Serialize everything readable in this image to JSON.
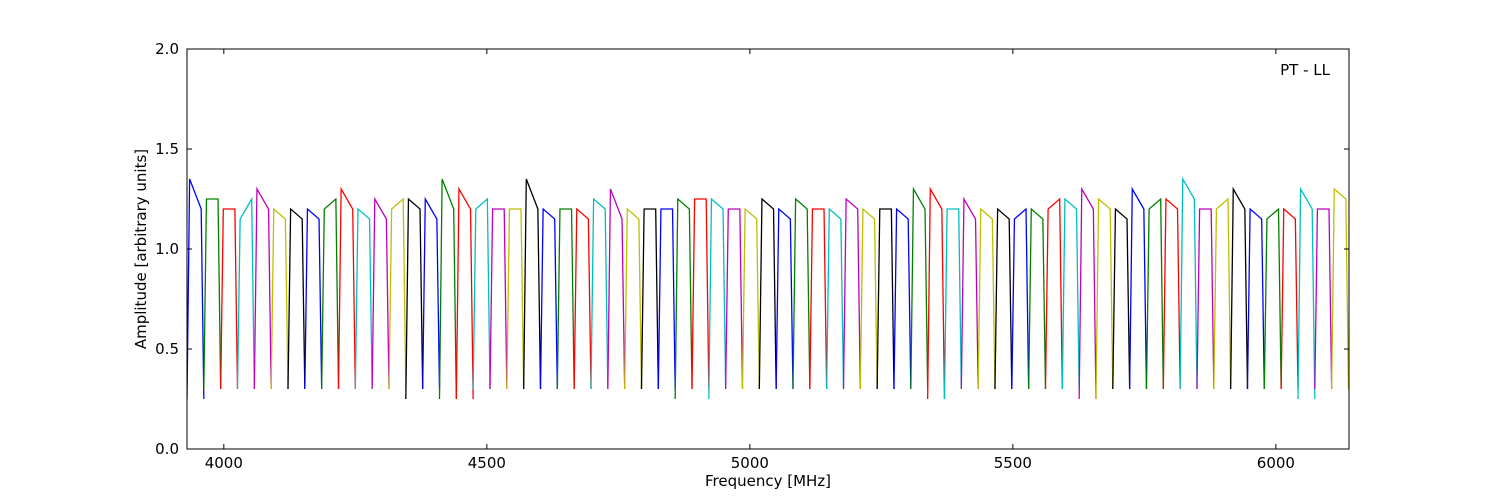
{
  "chart_data": {
    "type": "line",
    "xlabel": "Frequency [MHz]",
    "ylabel": "Amplitude [arbitrary units]",
    "annotation": "PT - LL",
    "xlim": [
      3930,
      6139
    ],
    "ylim": [
      0,
      2
    ],
    "xticks": [
      4000,
      4500,
      5000,
      5500,
      6000
    ],
    "yticks": [
      {
        "value": 0,
        "label": "0.0"
      },
      0.5,
      {
        "value": 1,
        "label": "1.0"
      },
      1.5,
      {
        "value": 2,
        "label": "2.0"
      }
    ],
    "series": [
      {
        "color": "#0000ff",
        "x": [
          3930,
          3935,
          3957,
          3962
        ],
        "values": [
          0.25,
          1.35,
          1.2,
          0.25
        ]
      },
      {
        "color": "#008000",
        "x": [
          3962,
          3967,
          3989,
          3994
        ],
        "values": [
          0.3,
          1.25,
          1.25,
          0.3
        ]
      },
      {
        "color": "#ff0000",
        "x": [
          3994,
          3999,
          4021,
          4026
        ],
        "values": [
          0.3,
          1.2,
          1.2,
          0.3
        ]
      },
      {
        "color": "#00bfbf",
        "x": [
          4026,
          4031,
          4053,
          4058
        ],
        "values": [
          0.3,
          1.15,
          1.25,
          0.3
        ]
      },
      {
        "color": "#bf00bf",
        "x": [
          4058,
          4063,
          4085,
          4090
        ],
        "values": [
          0.3,
          1.3,
          1.2,
          0.3
        ]
      },
      {
        "color": "#bfbf00",
        "x": [
          4090,
          4095,
          4117,
          4122
        ],
        "values": [
          0.3,
          1.2,
          1.15,
          0.3
        ]
      },
      {
        "color": "#000000",
        "x": [
          4122,
          4127,
          4149,
          4154
        ],
        "values": [
          0.3,
          1.2,
          1.15,
          0.3
        ]
      },
      {
        "color": "#0000ff",
        "x": [
          4154,
          4159,
          4181,
          4186
        ],
        "values": [
          0.3,
          1.2,
          1.15,
          0.3
        ]
      },
      {
        "color": "#008000",
        "x": [
          4186,
          4191,
          4213,
          4218
        ],
        "values": [
          0.3,
          1.2,
          1.25,
          0.3
        ]
      },
      {
        "color": "#ff0000",
        "x": [
          4218,
          4223,
          4245,
          4250
        ],
        "values": [
          0.3,
          1.3,
          1.2,
          0.3
        ]
      },
      {
        "color": "#00bfbf",
        "x": [
          4250,
          4255,
          4277,
          4282
        ],
        "values": [
          0.3,
          1.2,
          1.15,
          0.3
        ]
      },
      {
        "color": "#bf00bf",
        "x": [
          4282,
          4287,
          4309,
          4314
        ],
        "values": [
          0.3,
          1.25,
          1.15,
          0.3
        ]
      },
      {
        "color": "#bfbf00",
        "x": [
          4314,
          4319,
          4341,
          4346
        ],
        "values": [
          0.3,
          1.2,
          1.25,
          0.3
        ]
      },
      {
        "color": "#000000",
        "x": [
          4346,
          4351,
          4373,
          4378
        ],
        "values": [
          0.25,
          1.25,
          1.2,
          0.3
        ]
      },
      {
        "color": "#0000ff",
        "x": [
          4378,
          4383,
          4405,
          4410
        ],
        "values": [
          0.3,
          1.25,
          1.15,
          0.3
        ]
      },
      {
        "color": "#008000",
        "x": [
          4410,
          4415,
          4437,
          4442
        ],
        "values": [
          0.25,
          1.35,
          1.2,
          0.25
        ]
      },
      {
        "color": "#ff0000",
        "x": [
          4442,
          4447,
          4469,
          4474
        ],
        "values": [
          0.25,
          1.3,
          1.2,
          0.25
        ]
      },
      {
        "color": "#00bfbf",
        "x": [
          4474,
          4479,
          4501,
          4506
        ],
        "values": [
          0.3,
          1.2,
          1.25,
          0.3
        ]
      },
      {
        "color": "#bf00bf",
        "x": [
          4506,
          4511,
          4533,
          4538
        ],
        "values": [
          0.3,
          1.2,
          1.2,
          0.3
        ]
      },
      {
        "color": "#bfbf00",
        "x": [
          4538,
          4543,
          4565,
          4570
        ],
        "values": [
          0.3,
          1.2,
          1.2,
          0.3
        ]
      },
      {
        "color": "#000000",
        "x": [
          4570,
          4575,
          4597,
          4602
        ],
        "values": [
          0.3,
          1.35,
          1.2,
          0.3
        ]
      },
      {
        "color": "#0000ff",
        "x": [
          4602,
          4607,
          4629,
          4634
        ],
        "values": [
          0.3,
          1.2,
          1.15,
          0.3
        ]
      },
      {
        "color": "#008000",
        "x": [
          4634,
          4639,
          4661,
          4666
        ],
        "values": [
          0.3,
          1.2,
          1.2,
          0.3
        ]
      },
      {
        "color": "#ff0000",
        "x": [
          4666,
          4671,
          4693,
          4698
        ],
        "values": [
          0.3,
          1.2,
          1.15,
          0.3
        ]
      },
      {
        "color": "#00bfbf",
        "x": [
          4698,
          4703,
          4725,
          4730
        ],
        "values": [
          0.3,
          1.25,
          1.2,
          0.3
        ]
      },
      {
        "color": "#bf00bf",
        "x": [
          4730,
          4735,
          4757,
          4762
        ],
        "values": [
          0.3,
          1.3,
          1.15,
          0.3
        ]
      },
      {
        "color": "#bfbf00",
        "x": [
          4762,
          4767,
          4789,
          4794
        ],
        "values": [
          0.3,
          1.2,
          1.15,
          0.3
        ]
      },
      {
        "color": "#000000",
        "x": [
          4794,
          4799,
          4821,
          4826
        ],
        "values": [
          0.3,
          1.2,
          1.2,
          0.3
        ]
      },
      {
        "color": "#0000ff",
        "x": [
          4826,
          4831,
          4853,
          4858
        ],
        "values": [
          0.3,
          1.2,
          1.2,
          0.3
        ]
      },
      {
        "color": "#008000",
        "x": [
          4858,
          4863,
          4885,
          4890
        ],
        "values": [
          0.25,
          1.25,
          1.2,
          0.3
        ]
      },
      {
        "color": "#ff0000",
        "x": [
          4890,
          4895,
          4917,
          4922
        ],
        "values": [
          0.3,
          1.25,
          1.25,
          0.3
        ]
      },
      {
        "color": "#00bfbf",
        "x": [
          4922,
          4927,
          4949,
          4954
        ],
        "values": [
          0.25,
          1.25,
          1.2,
          0.3
        ]
      },
      {
        "color": "#bf00bf",
        "x": [
          4954,
          4959,
          4981,
          4986
        ],
        "values": [
          0.3,
          1.2,
          1.2,
          0.3
        ]
      },
      {
        "color": "#bfbf00",
        "x": [
          4986,
          4991,
          5013,
          5018
        ],
        "values": [
          0.3,
          1.2,
          1.15,
          0.3
        ]
      },
      {
        "color": "#000000",
        "x": [
          5018,
          5023,
          5045,
          5050
        ],
        "values": [
          0.3,
          1.25,
          1.2,
          0.3
        ]
      },
      {
        "color": "#0000ff",
        "x": [
          5050,
          5055,
          5077,
          5082
        ],
        "values": [
          0.3,
          1.2,
          1.15,
          0.3
        ]
      },
      {
        "color": "#008000",
        "x": [
          5082,
          5087,
          5109,
          5114
        ],
        "values": [
          0.3,
          1.25,
          1.2,
          0.3
        ]
      },
      {
        "color": "#ff0000",
        "x": [
          5114,
          5119,
          5141,
          5146
        ],
        "values": [
          0.3,
          1.2,
          1.2,
          0.3
        ]
      },
      {
        "color": "#00bfbf",
        "x": [
          5146,
          5151,
          5173,
          5178
        ],
        "values": [
          0.3,
          1.2,
          1.15,
          0.3
        ]
      },
      {
        "color": "#bf00bf",
        "x": [
          5178,
          5183,
          5205,
          5210
        ],
        "values": [
          0.3,
          1.25,
          1.2,
          0.3
        ]
      },
      {
        "color": "#bfbf00",
        "x": [
          5210,
          5215,
          5237,
          5242
        ],
        "values": [
          0.3,
          1.2,
          1.15,
          0.3
        ]
      },
      {
        "color": "#000000",
        "x": [
          5242,
          5247,
          5269,
          5274
        ],
        "values": [
          0.3,
          1.2,
          1.2,
          0.3
        ]
      },
      {
        "color": "#0000ff",
        "x": [
          5274,
          5279,
          5301,
          5306
        ],
        "values": [
          0.3,
          1.2,
          1.15,
          0.3
        ]
      },
      {
        "color": "#008000",
        "x": [
          5306,
          5311,
          5333,
          5338
        ],
        "values": [
          0.3,
          1.3,
          1.2,
          0.3
        ]
      },
      {
        "color": "#ff0000",
        "x": [
          5338,
          5343,
          5365,
          5370
        ],
        "values": [
          0.25,
          1.3,
          1.2,
          0.25
        ]
      },
      {
        "color": "#00bfbf",
        "x": [
          5370,
          5375,
          5397,
          5402
        ],
        "values": [
          0.25,
          1.2,
          1.2,
          0.3
        ]
      },
      {
        "color": "#bf00bf",
        "x": [
          5402,
          5407,
          5429,
          5434
        ],
        "values": [
          0.3,
          1.25,
          1.15,
          0.3
        ]
      },
      {
        "color": "#bfbf00",
        "x": [
          5434,
          5439,
          5461,
          5466
        ],
        "values": [
          0.3,
          1.2,
          1.15,
          0.3
        ]
      },
      {
        "color": "#000000",
        "x": [
          5466,
          5471,
          5493,
          5498
        ],
        "values": [
          0.3,
          1.2,
          1.15,
          0.3
        ]
      },
      {
        "color": "#0000ff",
        "x": [
          5498,
          5503,
          5525,
          5530
        ],
        "values": [
          0.3,
          1.15,
          1.2,
          0.3
        ]
      },
      {
        "color": "#008000",
        "x": [
          5530,
          5535,
          5557,
          5562
        ],
        "values": [
          0.3,
          1.2,
          1.15,
          0.3
        ]
      },
      {
        "color": "#ff0000",
        "x": [
          5562,
          5567,
          5589,
          5594
        ],
        "values": [
          0.3,
          1.2,
          1.25,
          0.3
        ]
      },
      {
        "color": "#00bfbf",
        "x": [
          5594,
          5599,
          5621,
          5626
        ],
        "values": [
          0.3,
          1.25,
          1.2,
          0.3
        ]
      },
      {
        "color": "#bf00bf",
        "x": [
          5626,
          5631,
          5653,
          5658
        ],
        "values": [
          0.25,
          1.3,
          1.2,
          0.25
        ]
      },
      {
        "color": "#bfbf00",
        "x": [
          5658,
          5663,
          5685,
          5690
        ],
        "values": [
          0.25,
          1.25,
          1.2,
          0.3
        ]
      },
      {
        "color": "#000000",
        "x": [
          5690,
          5695,
          5717,
          5722
        ],
        "values": [
          0.3,
          1.2,
          1.15,
          0.3
        ]
      },
      {
        "color": "#0000ff",
        "x": [
          5722,
          5727,
          5749,
          5754
        ],
        "values": [
          0.3,
          1.3,
          1.2,
          0.3
        ]
      },
      {
        "color": "#008000",
        "x": [
          5754,
          5759,
          5781,
          5786
        ],
        "values": [
          0.3,
          1.2,
          1.25,
          0.3
        ]
      },
      {
        "color": "#ff0000",
        "x": [
          5786,
          5791,
          5813,
          5818
        ],
        "values": [
          0.3,
          1.25,
          1.2,
          0.3
        ]
      },
      {
        "color": "#00bfbf",
        "x": [
          5818,
          5823,
          5845,
          5850
        ],
        "values": [
          0.3,
          1.35,
          1.25,
          0.3
        ]
      },
      {
        "color": "#bf00bf",
        "x": [
          5850,
          5855,
          5877,
          5882
        ],
        "values": [
          0.3,
          1.2,
          1.2,
          0.3
        ]
      },
      {
        "color": "#bfbf00",
        "x": [
          5882,
          5887,
          5909,
          5914
        ],
        "values": [
          0.3,
          1.2,
          1.25,
          0.3
        ]
      },
      {
        "color": "#000000",
        "x": [
          5914,
          5919,
          5941,
          5946
        ],
        "values": [
          0.3,
          1.3,
          1.2,
          0.3
        ]
      },
      {
        "color": "#0000ff",
        "x": [
          5946,
          5951,
          5973,
          5978
        ],
        "values": [
          0.3,
          1.2,
          1.15,
          0.3
        ]
      },
      {
        "color": "#008000",
        "x": [
          5978,
          5983,
          6005,
          6010
        ],
        "values": [
          0.3,
          1.15,
          1.2,
          0.3
        ]
      },
      {
        "color": "#ff0000",
        "x": [
          6010,
          6015,
          6037,
          6042
        ],
        "values": [
          0.3,
          1.2,
          1.15,
          0.3
        ]
      },
      {
        "color": "#00bfbf",
        "x": [
          6042,
          6047,
          6069,
          6074
        ],
        "values": [
          0.25,
          1.3,
          1.2,
          0.25
        ]
      },
      {
        "color": "#bf00bf",
        "x": [
          6074,
          6079,
          6101,
          6106
        ],
        "values": [
          0.3,
          1.2,
          1.2,
          0.3
        ]
      },
      {
        "color": "#bfbf00",
        "x": [
          6106,
          6111,
          6133,
          6138
        ],
        "values": [
          0.3,
          1.3,
          1.25,
          0.3
        ]
      }
    ]
  }
}
